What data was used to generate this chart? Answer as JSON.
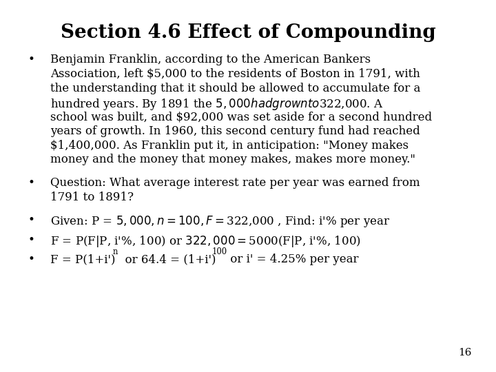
{
  "title": "Section 4.6 Effect of Compounding",
  "title_fontsize": 20,
  "title_fontweight": "bold",
  "background_color": "#ffffff",
  "text_color": "#000000",
  "bullet1_line1": "Benjamin Franklin, according to the American Bankers",
  "bullet1_line2": "Association, left $5,000 to the residents of Boston in 1791, with",
  "bullet1_line3": "the understanding that it should be allowed to accumulate for a",
  "bullet1_line4": "hundred years. By 1891 the $5,000 had grown to $322,000. A",
  "bullet1_line5": "school was built, and $92,000 was set aside for a second hundred",
  "bullet1_line6": "years of growth. In 1960, this second century fund had reached",
  "bullet1_line7": "$1,400,000. As Franklin put it, in anticipation: \"Money makes",
  "bullet1_line8": "money and the money that money makes, makes more money.\"",
  "bullet2_line1": "Question: What average interest rate per year was earned from",
  "bullet2_line2": "1791 to 1891?",
  "bullet3": "Given: P = $5,000, n = 100, F = $322,000 , Find: i'% per year",
  "bullet4": "F = P(F|P, i'%, 100) or $322,000 = $5000(F|P, i'%, 100)",
  "bullet5_part1": "F = P(1+i')",
  "bullet5_sup1": "n",
  "bullet5_part2": "  or 64.4 = (1+i')",
  "bullet5_sup2": "100",
  "bullet5_part3": " or i' = 4.25% per year",
  "page_number": "16",
  "body_fontsize": 12,
  "font_family": "DejaVu Serif"
}
